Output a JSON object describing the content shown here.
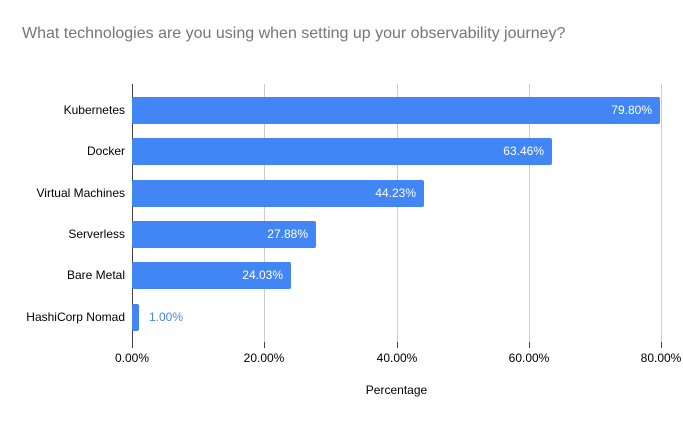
{
  "chart_data": {
    "type": "bar",
    "orientation": "horizontal",
    "title": "What technologies are you using when setting up your observability journey?",
    "xlabel": "Percentage",
    "ylabel": "",
    "categories": [
      "Kubernetes",
      "Docker",
      "Virtual Machines",
      "Serverless",
      "Bare Metal",
      "HashiCorp Nomad"
    ],
    "values": [
      79.8,
      63.46,
      44.23,
      27.88,
      24.03,
      1.0
    ],
    "value_labels": [
      "79.80%",
      "63.46%",
      "44.23%",
      "27.88%",
      "24.03%",
      "1.00%"
    ],
    "xlim": [
      0,
      80
    ],
    "x_tick_values": [
      0,
      20,
      40,
      60,
      80
    ],
    "x_ticks": [
      "0.00%",
      "20.00%",
      "40.00%",
      "60.00%",
      "80.00%"
    ],
    "grid": "vertical",
    "legend": "none",
    "colors": {
      "background": "#ffffff",
      "bar": "#4285f4",
      "title_text": "#757575",
      "axis_text": "#000000",
      "gridline": "#cccccc",
      "axis_line": "#424242",
      "value_label_inside": "#ffffff",
      "value_label_outside": "#4285f4"
    }
  }
}
